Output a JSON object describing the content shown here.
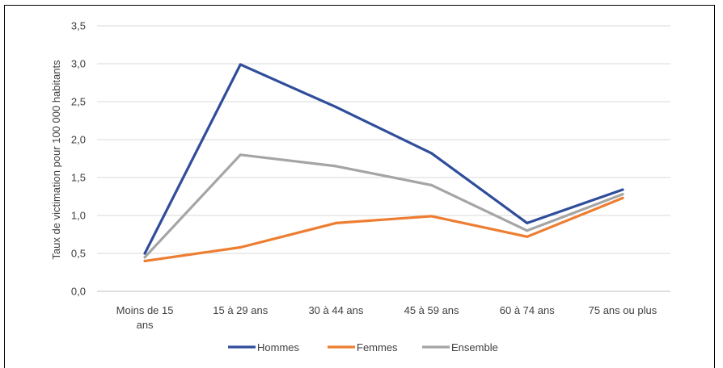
{
  "chart_data": {
    "type": "line",
    "title": "",
    "xlabel": "",
    "ylabel": "Taux de victimation pour 100 000 habitants",
    "categories": [
      [
        "Moins de 15",
        "ans"
      ],
      [
        "15  à 29 ans"
      ],
      [
        "30 à 44  ans"
      ],
      [
        "45 à 59 ans"
      ],
      [
        "60 à 74 ans"
      ],
      [
        "75 ans ou plus"
      ]
    ],
    "ylim": [
      0,
      3.5
    ],
    "yticks": [
      "0,0",
      "0,5",
      "1,0",
      "1,5",
      "2,0",
      "2,5",
      "3,0",
      "3,5"
    ],
    "grid": true,
    "legend_position": "bottom",
    "series": [
      {
        "name": "Hommes",
        "color": "#2f4d9b",
        "values": [
          0.5,
          2.99,
          2.43,
          1.82,
          0.9,
          1.34
        ]
      },
      {
        "name": "Femmes",
        "color": "#ed7d31",
        "values": [
          0.4,
          0.58,
          0.9,
          0.99,
          0.72,
          1.23
        ]
      },
      {
        "name": "Ensemble",
        "color": "#a5a5a5",
        "values": [
          0.45,
          1.8,
          1.65,
          1.4,
          0.8,
          1.28
        ]
      }
    ]
  }
}
